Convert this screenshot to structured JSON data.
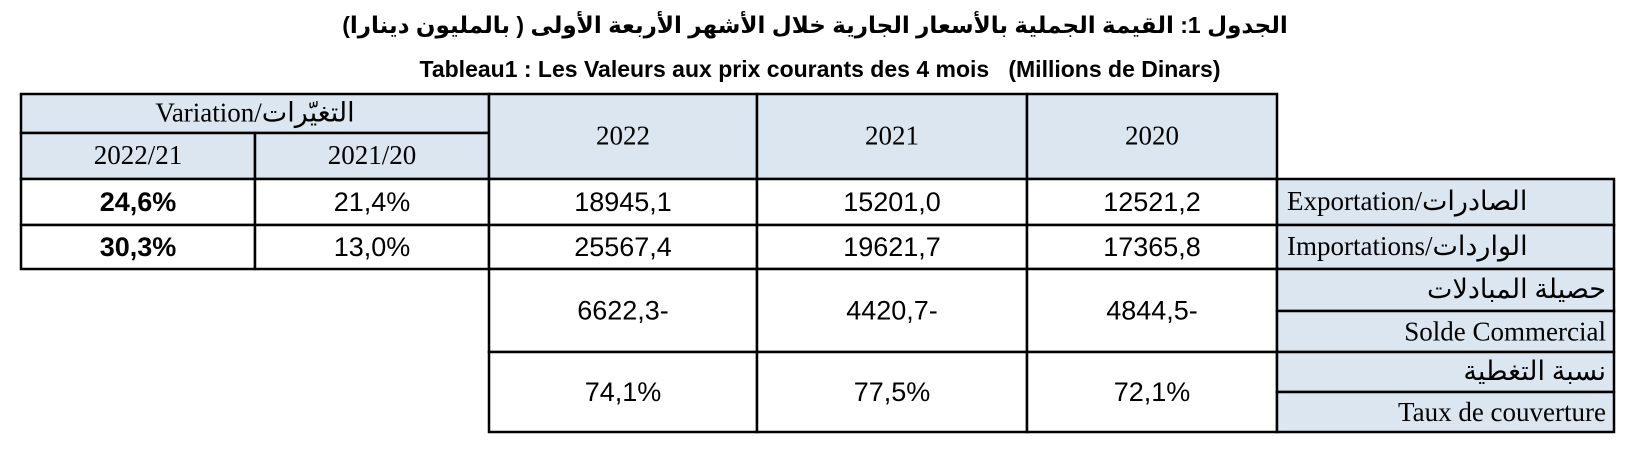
{
  "title_ar": "الجدول 1:  القيمة الجملية بالأسعار الجارية خلال الأشهر الأربعة الأولى ( بالمليون دينارا)",
  "title_fr": "Tableau1 : Les Valeurs aux prix courants des 4 mois   (Millions de Dinars)",
  "table": {
    "header": {
      "variation": "Variation/التغيّرات",
      "periods": [
        "2022/21",
        "2021/20"
      ],
      "years": [
        "2022",
        "2021",
        "2020"
      ]
    },
    "rows": [
      {
        "label": "Exportation/الصادرات",
        "variation": [
          "24,6%",
          "21,4%"
        ],
        "values": [
          "18945,1",
          "15201,0",
          "12521,2"
        ]
      },
      {
        "label": "Importations/الواردات",
        "variation": [
          "30,3%",
          "13,0%"
        ],
        "values": [
          "25567,4",
          "19621,7",
          "17365,8"
        ]
      }
    ],
    "balance": {
      "label_ar": "حصيلة المبادلات",
      "label_fr": "Solde Commercial",
      "values": [
        "6622,3-",
        "4420,7-",
        "4844,5-"
      ]
    },
    "coverage": {
      "label_ar": "نسبة التغطية",
      "label_fr": "Taux de couverture",
      "values": [
        "74,1%",
        "77,5%",
        "72,1%"
      ]
    }
  }
}
